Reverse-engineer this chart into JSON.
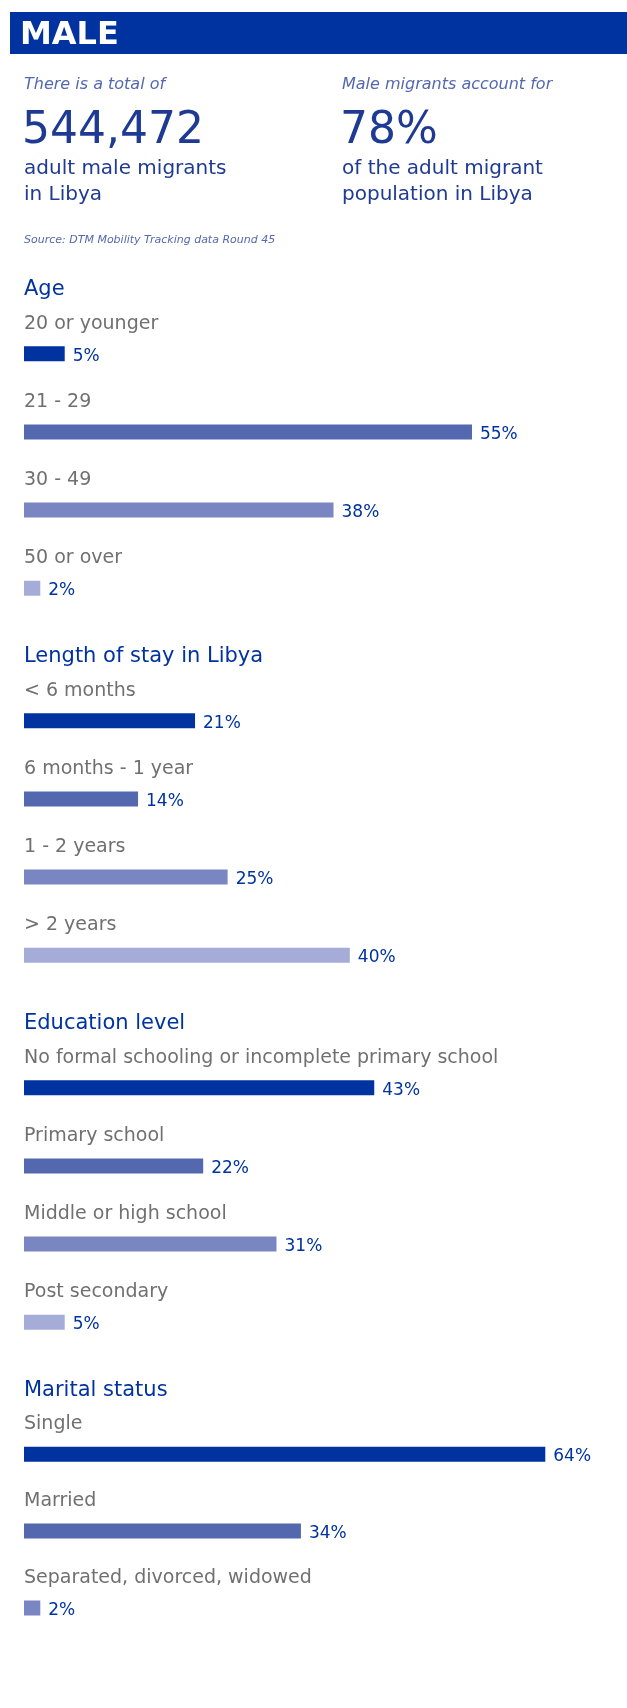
{
  "chart_data": [
    {
      "type": "other",
      "title": "MALE",
      "annotations": [
        "There is a total of",
        "544,472",
        "adult male migrants",
        "in Libya",
        "Male migrants account for",
        "78%",
        "of the adult migrant",
        "population in Libya",
        "Source: DTM Mobility Tracking data Round 45"
      ]
    },
    {
      "type": "bar",
      "orientation": "horizontal",
      "title": "Age",
      "categories": [
        "20 or younger",
        "21 - 29",
        "30 - 49",
        "50 or over"
      ],
      "values": [
        5,
        55,
        38,
        2
      ],
      "colors": [
        "#0033a0",
        "#5468b0",
        "#7a86c2",
        "#a6acd8"
      ],
      "value_labels": [
        "5%",
        "55%",
        "38%",
        "2%"
      ]
    },
    {
      "type": "bar",
      "orientation": "horizontal",
      "title": "Length of stay in Libya",
      "categories": [
        "< 6 months",
        "6 months - 1 year",
        "1 - 2 years",
        "> 2 years"
      ],
      "values": [
        21,
        14,
        25,
        40
      ],
      "colors": [
        "#0033a0",
        "#5468b0",
        "#7a86c2",
        "#a6acd8"
      ],
      "value_labels": [
        "21%",
        "14%",
        "25%",
        "40%"
      ]
    },
    {
      "type": "bar",
      "orientation": "horizontal",
      "title": "Education level",
      "categories": [
        "No formal schooling or incomplete primary school",
        "Primary school",
        "Middle or high school",
        "Post secondary"
      ],
      "values": [
        43,
        22,
        31,
        5
      ],
      "colors": [
        "#0033a0",
        "#5468b0",
        "#7a86c2",
        "#a6acd8"
      ],
      "value_labels": [
        "43%",
        "22%",
        "31%",
        "5%"
      ]
    },
    {
      "type": "bar",
      "orientation": "horizontal",
      "title": "Marital status",
      "categories": [
        "Single",
        "Married",
        "Separated, divorced, widowed"
      ],
      "values": [
        64,
        34,
        2
      ],
      "colors": [
        "#0033a0",
        "#5468b0",
        "#7a86c2"
      ],
      "value_labels": [
        "64%",
        "34%",
        "2%"
      ]
    }
  ]
}
